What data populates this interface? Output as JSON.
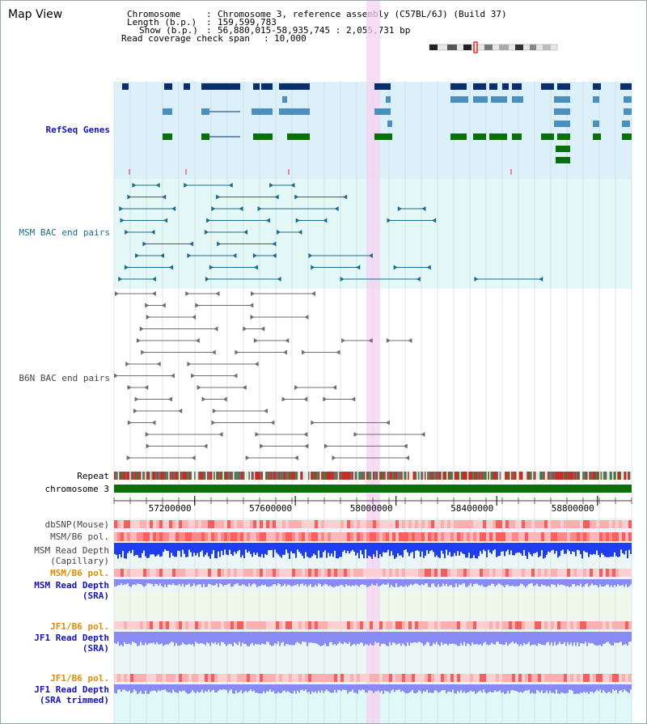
{
  "header": {
    "title": "Map View",
    "chromosome_label": "Chromosome",
    "chromosome_value": "Chromosome 3, reference assembly (C57BL/6J) (Build 37)",
    "length_label": "Length (b.p.)",
    "length_value": "159,599,783",
    "show_label": "Show (b.p.)",
    "show_value": "56,880,015-58,935,745 : 2,055,731 bp",
    "span_label": "Read coverage check span",
    "span_value": "10,000"
  },
  "tracks": {
    "refseq": "RefSeq Genes",
    "msm_bac": "MSM BAC end pairs",
    "b6n_bac": "B6N BAC end pairs",
    "repeat": "Repeat",
    "chromosome": "chromosome 3",
    "dbsnp": "dbSNP(Mouse)",
    "msm_b6_pol": "MSM/B6 pol.",
    "msm_depth_cap_1": "MSM Read Depth",
    "msm_depth_cap_2": "(Capillary)",
    "msm_b6_pol_sra": "MSM/B6 pol.",
    "msm_depth_sra_1": "MSM Read Depth",
    "msm_depth_sra_2": "(SRA)",
    "jf1_b6_pol": "JF1/B6 pol.",
    "jf1_depth_sra_1": "JF1 Read Depth",
    "jf1_depth_sra_2": "(SRA)",
    "jf1_b6_pol_trim": "JF1/B6 pol.",
    "jf1_depth_trim_1": "JF1 Read Depth",
    "jf1_depth_trim_2": "(SRA trimmed)"
  },
  "axis": {
    "ticks": [
      "57200000",
      "57600000",
      "58000000",
      "58400000",
      "58800000"
    ],
    "tick_values": [
      57200000,
      57600000,
      58000000,
      58400000,
      58800000
    ],
    "start": 56880015,
    "end": 58935745
  },
  "colors": {
    "refseq_bg": "#dcf0fa",
    "msm_bg": "#e4f8f8",
    "b6n_bg": "#ffffff",
    "highlight": "#f5d2f0",
    "gene_dark": "#0a2d6e",
    "gene_mid": "#4a8fc0",
    "gene_green": "#0a6e0a",
    "msm_pair": "#1a6b8a",
    "b6n_pair": "#6e6e6e",
    "chromosome_bar": "#0a6e0a",
    "pol_red": "#e83030",
    "depth_blue": "#1e3cf0",
    "depth_light": "#8a8af5",
    "label_blue": "#1414b4",
    "label_orange": "#dc8c00",
    "label_teal": "#1e6e8c"
  }
}
